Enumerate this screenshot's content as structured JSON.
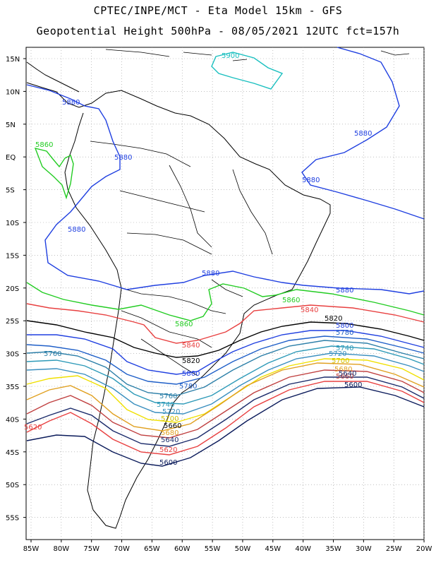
{
  "title_line1": "CPTEC/INPE/MCT -  Eta Model 15km - GFS",
  "title_line2": "Geopotential Height 500hPa - 08/05/2021 12UTC fct=157h",
  "lat_ticks": [
    "15N",
    "10N",
    "5N",
    "EQ",
    "5S",
    "10S",
    "15S",
    "20S",
    "25S",
    "30S",
    "35S",
    "40S",
    "45S",
    "50S",
    "55S"
  ],
  "lon_ticks": [
    "85W",
    "80W",
    "75W",
    "70W",
    "65W",
    "60W",
    "55W",
    "50W",
    "45W",
    "40W",
    "35W",
    "30W",
    "25W",
    "20W"
  ],
  "contours": [
    {
      "value": "5900",
      "color": "#19bfbf"
    },
    {
      "value": "5880",
      "color": "#1f3fe0"
    },
    {
      "value": "5860",
      "color": "#22cc22"
    },
    {
      "value": "5840",
      "color": "#e84040"
    },
    {
      "value": "5820",
      "color": "#000000"
    },
    {
      "value": "5800",
      "color": "#1f3fe0"
    },
    {
      "value": "5780",
      "color": "#1f5fc8"
    },
    {
      "value": "5760",
      "color": "#2c7fa8"
    },
    {
      "value": "5740",
      "color": "#2e9ab8"
    },
    {
      "value": "5720",
      "color": "#3a8fbf"
    },
    {
      "value": "5700",
      "color": "#f0e000"
    },
    {
      "value": "5680",
      "color": "#e0a020"
    },
    {
      "value": "5660",
      "color": "#c04040"
    },
    {
      "value": "5640",
      "color": "#1a2a6a"
    },
    {
      "value": "5620",
      "color": "#e84040"
    },
    {
      "value": "5600",
      "color": "#0a1a5a"
    }
  ]
}
